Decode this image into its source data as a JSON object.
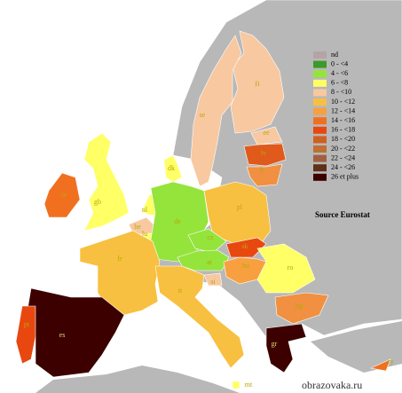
{
  "legend": {
    "items": [
      {
        "label": "nd",
        "color": "#b4a4a4"
      },
      {
        "label": "0 - <4",
        "color": "#3c9a28"
      },
      {
        "label": "4 - <6",
        "color": "#94e43c"
      },
      {
        "label": "6 - <8",
        "color": "#ffff66"
      },
      {
        "label": "8 -  <10",
        "color": "#f8c8a0"
      },
      {
        "label": "10 - <12",
        "color": "#f8c040"
      },
      {
        "label": "12 - <14",
        "color": "#f8a040"
      },
      {
        "label": "14 - <16",
        "color": "#f07020"
      },
      {
        "label": "16 - <18",
        "color": "#e84810"
      },
      {
        "label": "18 - <20",
        "color": "#d06020"
      },
      {
        "label": "20 - <22",
        "color": "#c07030"
      },
      {
        "label": "22 - <24",
        "color": "#a06040"
      },
      {
        "label": "24 - <26",
        "color": "#603018"
      },
      {
        "label": "26 et plus",
        "color": "#3c0000"
      }
    ]
  },
  "countries": [
    {
      "code": "fi",
      "color": "#f8c8a0"
    },
    {
      "code": "se",
      "color": "#f8c8a0"
    },
    {
      "code": "ee",
      "color": "#f8c8a0"
    },
    {
      "code": "lv",
      "color": "#e05a1c"
    },
    {
      "code": "lt",
      "color": "#f09040"
    },
    {
      "code": "dk",
      "color": "#ffff66"
    },
    {
      "code": "gb",
      "color": "#ffff66"
    },
    {
      "code": "ie",
      "color": "#f07020"
    },
    {
      "code": "nl",
      "color": "#ffff66"
    },
    {
      "code": "be",
      "color": "#f8c8a0"
    },
    {
      "code": "lu",
      "color": "#ffff66"
    },
    {
      "code": "de",
      "color": "#94e43c"
    },
    {
      "code": "pl",
      "color": "#f8c040"
    },
    {
      "code": "cz",
      "color": "#94e43c"
    },
    {
      "code": "sk",
      "color": "#e84810"
    },
    {
      "code": "at",
      "color": "#94e43c"
    },
    {
      "code": "hu",
      "color": "#f8a040"
    },
    {
      "code": "si",
      "color": "#f8c8a0"
    },
    {
      "code": "ro",
      "color": "#ffff66"
    },
    {
      "code": "bg",
      "color": "#f09040"
    },
    {
      "code": "fr",
      "color": "#f8c040"
    },
    {
      "code": "it",
      "color": "#f8c040"
    },
    {
      "code": "es",
      "color": "#3c0000"
    },
    {
      "code": "pt",
      "color": "#e84810"
    },
    {
      "code": "gr",
      "color": "#3c0000"
    },
    {
      "code": "cy",
      "color": "#f07020"
    },
    {
      "code": "mt",
      "color": "#ffff66"
    }
  ],
  "source": "Source Eurostat",
  "watermark": "obrazovaka.ru"
}
